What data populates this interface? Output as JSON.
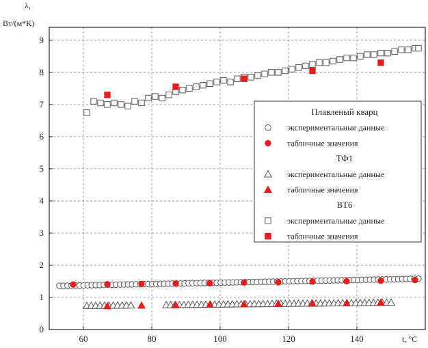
{
  "chart_data": {
    "type": "scatter",
    "title": "",
    "ylabel": "λ, Вт/(м*К)",
    "xlabel": "t, °C",
    "xlim": [
      50,
      160
    ],
    "ylim": [
      0,
      9.4
    ],
    "xticks": [
      60,
      80,
      100,
      120,
      140
    ],
    "yticks": [
      0,
      1,
      2,
      3,
      4,
      5,
      6,
      7,
      8,
      9
    ],
    "grid": true,
    "legend_position": "center-right",
    "legend": [
      {
        "type": "title",
        "text": "Плавленый кварц"
      },
      {
        "type": "entry",
        "text": "экспериментальные данные",
        "marker": "circle-open"
      },
      {
        "type": "entry",
        "text": "табличные значения",
        "marker": "circle-filled"
      },
      {
        "type": "title",
        "text": "ТФ1"
      },
      {
        "type": "entry",
        "text": "экспериментальные данные",
        "marker": "triangle-open"
      },
      {
        "type": "entry",
        "text": "табличные значения",
        "marker": "triangle-filled"
      },
      {
        "type": "title",
        "text": "ВТ6"
      },
      {
        "type": "entry",
        "text": "экспериментальные данные",
        "marker": "square-open"
      },
      {
        "type": "entry",
        "text": "табличные значения",
        "marker": "square-filled"
      }
    ],
    "colors": {
      "experimental": "#555555",
      "tabular": "#e02020"
    },
    "series": [
      {
        "name": "Плавленый кварц — экспериментальные данные",
        "marker": "circle-open",
        "x_start": 53,
        "x_end": 158,
        "count": 90,
        "y_start": 1.36,
        "y_end": 1.58
      },
      {
        "name": "Плавленый кварц — табличные значения",
        "marker": "circle-filled",
        "x": [
          57,
          67,
          77,
          87,
          97,
          107,
          117,
          127,
          137,
          147,
          157
        ],
        "y": [
          1.4,
          1.41,
          1.42,
          1.43,
          1.44,
          1.46,
          1.47,
          1.49,
          1.5,
          1.52,
          1.54
        ]
      },
      {
        "name": "ТФ1 — экспериментальные данные",
        "marker": "triangle-open",
        "x_start": 61,
        "x_end": 150,
        "count": 70,
        "y_start": 0.74,
        "y_end": 0.84,
        "gap": [
          74,
          84
        ]
      },
      {
        "name": "ТФ1 — табличные значения",
        "marker": "triangle-filled",
        "x": [
          67,
          77,
          87,
          97,
          107,
          117,
          127,
          137,
          147
        ],
        "y": [
          0.73,
          0.75,
          0.76,
          0.78,
          0.79,
          0.8,
          0.81,
          0.82,
          0.84
        ]
      },
      {
        "name": "ВТ6 — экспериментальные данные",
        "marker": "square-open",
        "x": [
          61,
          63,
          65,
          67,
          69,
          71,
          73,
          75,
          77,
          79,
          81,
          83,
          85,
          87,
          89,
          91,
          93,
          95,
          97,
          99,
          101,
          103,
          105,
          107,
          109,
          111,
          113,
          115,
          117,
          119,
          121,
          123,
          125,
          127,
          129,
          131,
          133,
          135,
          137,
          139,
          141,
          143,
          145,
          147,
          149,
          151,
          153,
          155,
          157,
          158
        ],
        "y": [
          6.75,
          7.1,
          7.05,
          7.0,
          7.05,
          7.0,
          6.95,
          7.1,
          7.05,
          7.2,
          7.25,
          7.2,
          7.3,
          7.4,
          7.45,
          7.5,
          7.55,
          7.6,
          7.65,
          7.7,
          7.75,
          7.7,
          7.8,
          7.85,
          7.85,
          7.9,
          7.95,
          8.0,
          8.0,
          8.05,
          8.1,
          8.15,
          8.2,
          8.25,
          8.3,
          8.3,
          8.35,
          8.4,
          8.45,
          8.45,
          8.5,
          8.55,
          8.55,
          8.6,
          8.6,
          8.65,
          8.7,
          8.7,
          8.75,
          8.75
        ]
      },
      {
        "name": "ВТ6 — табличные значения",
        "marker": "square-filled",
        "x": [
          67,
          87,
          107,
          127,
          147
        ],
        "y": [
          7.3,
          7.55,
          7.8,
          8.05,
          8.3
        ]
      }
    ]
  }
}
